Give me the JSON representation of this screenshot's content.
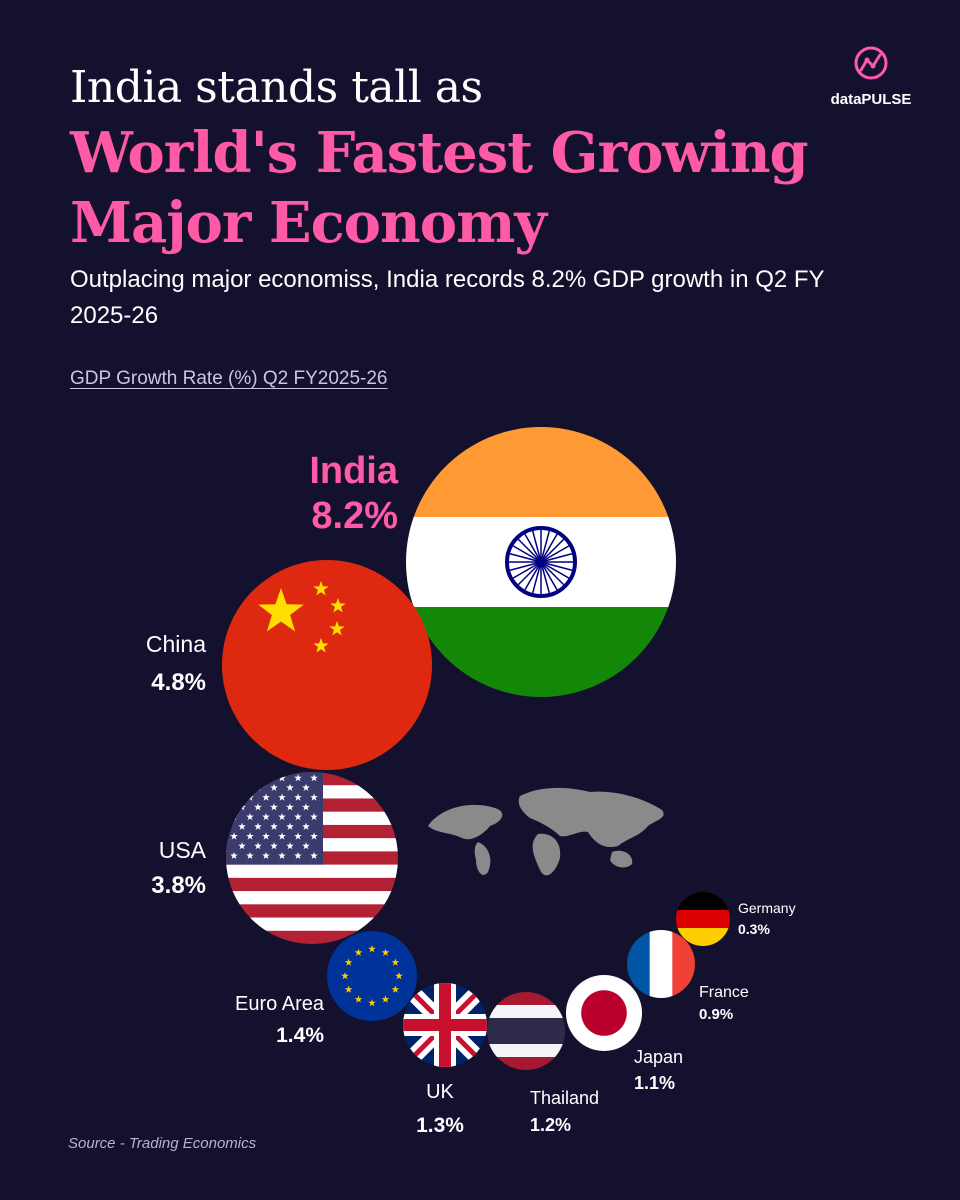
{
  "title": {
    "line1": "India stands tall as",
    "line2": "World's Fastest Growing Major Economy"
  },
  "subtitle": "Outplacing major economiss, India records 8.2% GDP growth in Q2 FY 2025-26",
  "brand": {
    "name": "dataPULSE",
    "accent": "#ff5aa5"
  },
  "source": "Source - Trading Economics",
  "colors": {
    "background": "#14112f",
    "highlight": "#ff5aa5",
    "text": "#ffffff"
  },
  "chart_data": {
    "type": "bubble",
    "title": "GDP Growth Rate (%) Q2 FY2025-26",
    "unit": "%",
    "series": [
      {
        "country": "India",
        "value": 8.2,
        "label": "8.2%",
        "flag": "india-flag",
        "highlight": true
      },
      {
        "country": "China",
        "value": 4.8,
        "label": "4.8%",
        "flag": "china-flag"
      },
      {
        "country": "USA",
        "value": 3.8,
        "label": "3.8%",
        "flag": "usa-flag"
      },
      {
        "country": "Euro Area",
        "value": 1.4,
        "label": "1.4%",
        "flag": "eu-flag"
      },
      {
        "country": "UK",
        "value": 1.3,
        "label": "1.3%",
        "flag": "uk-flag"
      },
      {
        "country": "Thailand",
        "value": 1.2,
        "label": "1.2%",
        "flag": "thailand-flag"
      },
      {
        "country": "Japan",
        "value": 1.1,
        "label": "1.1%",
        "flag": "japan-flag"
      },
      {
        "country": "France",
        "value": 0.9,
        "label": "0.9%",
        "flag": "france-flag"
      },
      {
        "country": "Germany",
        "value": 0.3,
        "label": "0.3%",
        "flag": "germany-flag"
      }
    ],
    "decoration": "world-map-globe"
  }
}
